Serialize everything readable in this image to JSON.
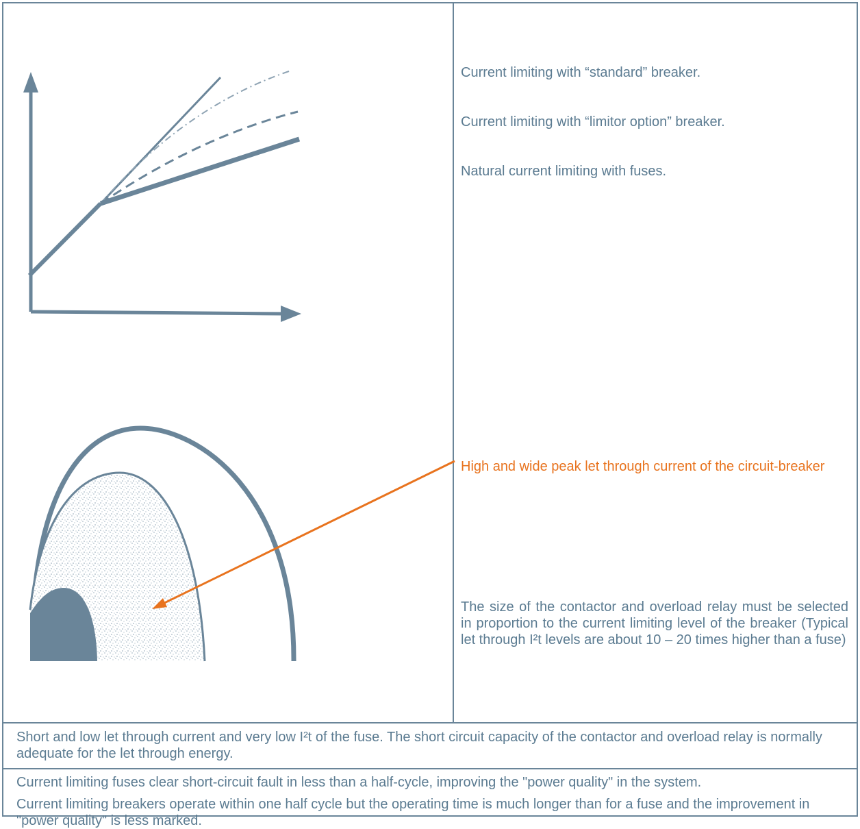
{
  "legend": {
    "standard": "Current limiting with “standard” breaker.",
    "limitor": "Current limiting with “limitor option” breaker.",
    "fuses": "Natural current limiting with fuses."
  },
  "peak_note": "High and wide peak let through current of the circuit-breaker",
  "contactor_note": "The size of the contactor and overload relay must be selected in proportion to the current limiting level of the breaker (Typical let through I²t levels are about 10 – 20  times higher than a fuse)",
  "fuse_note": "Short and low let through current and very low I²t of the fuse. The short circuit capacity of the contactor and overload relay is normally adequate for the let through energy.",
  "footer": {
    "line1": "Current limiting fuses clear short-circuit fault in less than a half-cycle, improving the \"power quality\" in the system.",
    "line2": "Current limiting breakers operate within one half cycle but the operating time is much longer than for a fuse and the improvement in \"power quality\" is less marked."
  },
  "colors": {
    "line": "#6a8599",
    "text": "#5b7b91",
    "accent": "#e8731e"
  }
}
